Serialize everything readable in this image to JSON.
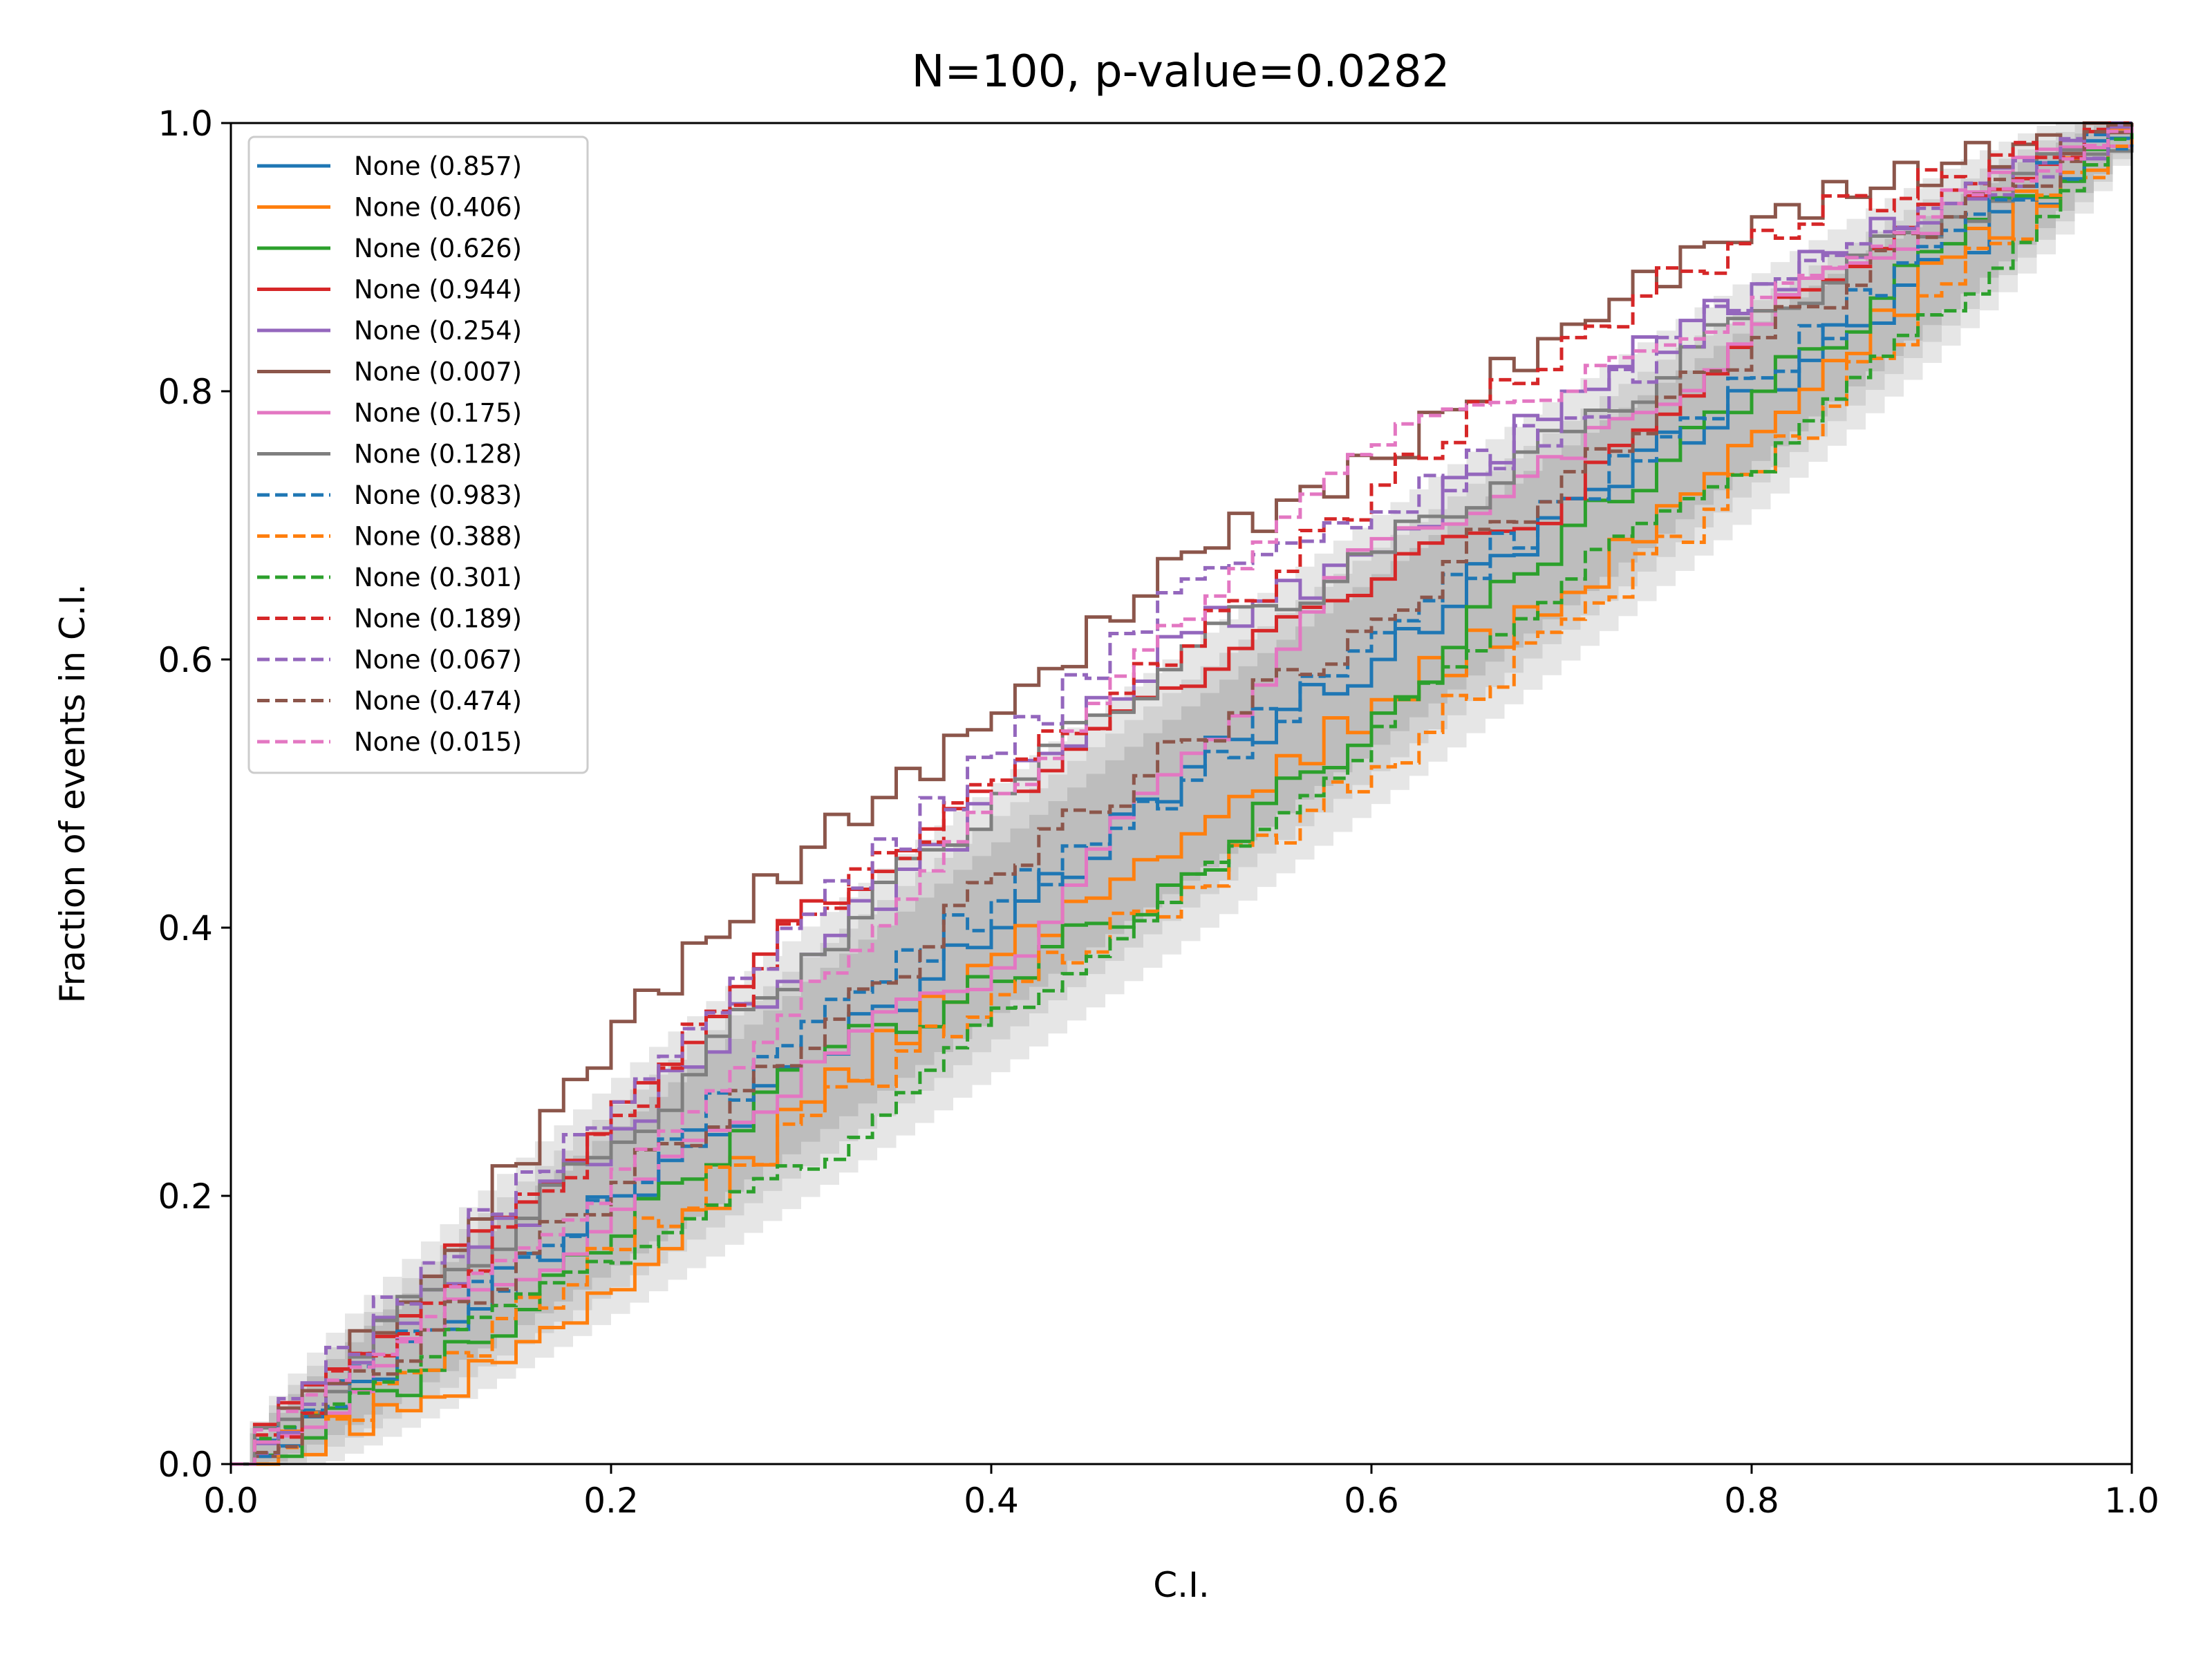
{
  "chart_data": {
    "type": "line",
    "title": "N=100, p-value=0.0282",
    "xlabel": "C.I.",
    "ylabel": "Fraction of events in C.I.",
    "xlim": [
      0.0,
      1.0
    ],
    "ylim": [
      0.0,
      1.0
    ],
    "xticks": [
      "0.0",
      "0.2",
      "0.4",
      "0.6",
      "0.8",
      "1.0"
    ],
    "yticks": [
      "0.0",
      "0.2",
      "0.4",
      "0.6",
      "0.8",
      "1.0"
    ],
    "grid": false,
    "legend_position": "top-left",
    "n_events": 100,
    "confidence_bands": [
      {
        "name": "inner",
        "color": "#bdbdbd",
        "half_width_at_center": 0.065
      },
      {
        "name": "middle",
        "color": "#d2d2d2",
        "half_width_at_center": 0.085
      },
      {
        "name": "outer",
        "color": "#e6e6e6",
        "half_width_at_center": 0.11
      }
    ],
    "series": [
      {
        "name": "None (0.857)",
        "color": "#1f77b4",
        "dash": "solid",
        "values": [
          [
            0,
            0
          ],
          [
            0.1,
            0.1
          ],
          [
            0.2,
            0.2
          ],
          [
            0.3,
            0.3
          ],
          [
            0.4,
            0.4
          ],
          [
            0.5,
            0.52
          ],
          [
            0.6,
            0.6
          ],
          [
            0.7,
            0.72
          ],
          [
            0.8,
            0.8
          ],
          [
            0.9,
            0.9
          ],
          [
            1,
            1
          ]
        ]
      },
      {
        "name": "None (0.406)",
        "color": "#ff7f0e",
        "dash": "solid",
        "values": [
          [
            0,
            0
          ],
          [
            0.1,
            0.05
          ],
          [
            0.2,
            0.13
          ],
          [
            0.3,
            0.27
          ],
          [
            0.4,
            0.38
          ],
          [
            0.5,
            0.47
          ],
          [
            0.6,
            0.57
          ],
          [
            0.7,
            0.65
          ],
          [
            0.8,
            0.77
          ],
          [
            0.9,
            0.9
          ],
          [
            1,
            1
          ]
        ]
      },
      {
        "name": "None (0.626)",
        "color": "#2ca02c",
        "dash": "solid",
        "values": [
          [
            0,
            0
          ],
          [
            0.1,
            0.07
          ],
          [
            0.2,
            0.17
          ],
          [
            0.3,
            0.3
          ],
          [
            0.4,
            0.36
          ],
          [
            0.5,
            0.44
          ],
          [
            0.6,
            0.56
          ],
          [
            0.7,
            0.7
          ],
          [
            0.8,
            0.8
          ],
          [
            0.9,
            0.91
          ],
          [
            1,
            1
          ]
        ]
      },
      {
        "name": "None (0.944)",
        "color": "#d62728",
        "dash": "solid",
        "values": [
          [
            0,
            0
          ],
          [
            0.1,
            0.14
          ],
          [
            0.2,
            0.27
          ],
          [
            0.3,
            0.42
          ],
          [
            0.4,
            0.5
          ],
          [
            0.5,
            0.58
          ],
          [
            0.6,
            0.66
          ],
          [
            0.7,
            0.72
          ],
          [
            0.8,
            0.86
          ],
          [
            0.9,
            0.95
          ],
          [
            1,
            1
          ]
        ]
      },
      {
        "name": "None (0.254)",
        "color": "#9467bd",
        "dash": "solid",
        "values": [
          [
            0,
            0
          ],
          [
            0.1,
            0.13
          ],
          [
            0.2,
            0.25
          ],
          [
            0.3,
            0.38
          ],
          [
            0.4,
            0.5
          ],
          [
            0.5,
            0.62
          ],
          [
            0.6,
            0.68
          ],
          [
            0.7,
            0.8
          ],
          [
            0.8,
            0.88
          ],
          [
            0.9,
            0.94
          ],
          [
            1,
            1
          ]
        ]
      },
      {
        "name": "None (0.007)",
        "color": "#8c564b",
        "dash": "solid",
        "values": [
          [
            0,
            0
          ],
          [
            0.1,
            0.14
          ],
          [
            0.2,
            0.33
          ],
          [
            0.3,
            0.46
          ],
          [
            0.4,
            0.56
          ],
          [
            0.5,
            0.68
          ],
          [
            0.6,
            0.75
          ],
          [
            0.7,
            0.85
          ],
          [
            0.8,
            0.93
          ],
          [
            0.9,
            0.97
          ],
          [
            1,
            1
          ]
        ]
      },
      {
        "name": "None (0.175)",
        "color": "#e377c2",
        "dash": "solid",
        "values": [
          [
            0,
            0
          ],
          [
            0.1,
            0.1
          ],
          [
            0.2,
            0.19
          ],
          [
            0.3,
            0.3
          ],
          [
            0.4,
            0.37
          ],
          [
            0.5,
            0.53
          ],
          [
            0.6,
            0.69
          ],
          [
            0.7,
            0.75
          ],
          [
            0.8,
            0.85
          ],
          [
            0.9,
            0.94
          ],
          [
            1,
            1
          ]
        ]
      },
      {
        "name": "None (0.128)",
        "color": "#7f7f7f",
        "dash": "solid",
        "values": [
          [
            0,
            0
          ],
          [
            0.1,
            0.13
          ],
          [
            0.2,
            0.24
          ],
          [
            0.3,
            0.38
          ],
          [
            0.4,
            0.5
          ],
          [
            0.5,
            0.61
          ],
          [
            0.6,
            0.68
          ],
          [
            0.7,
            0.77
          ],
          [
            0.8,
            0.86
          ],
          [
            0.9,
            0.93
          ],
          [
            1,
            1
          ]
        ]
      },
      {
        "name": "None (0.983)",
        "color": "#1f77b4",
        "dash": "dashed",
        "values": [
          [
            0,
            0
          ],
          [
            0.1,
            0.1
          ],
          [
            0.2,
            0.2
          ],
          [
            0.3,
            0.33
          ],
          [
            0.4,
            0.42
          ],
          [
            0.5,
            0.51
          ],
          [
            0.6,
            0.62
          ],
          [
            0.7,
            0.72
          ],
          [
            0.8,
            0.81
          ],
          [
            0.9,
            0.92
          ],
          [
            1,
            1
          ]
        ]
      },
      {
        "name": "None (0.388)",
        "color": "#ff7f0e",
        "dash": "dashed",
        "values": [
          [
            0,
            0
          ],
          [
            0.1,
            0.07
          ],
          [
            0.2,
            0.16
          ],
          [
            0.3,
            0.26
          ],
          [
            0.4,
            0.35
          ],
          [
            0.5,
            0.43
          ],
          [
            0.6,
            0.52
          ],
          [
            0.7,
            0.63
          ],
          [
            0.8,
            0.74
          ],
          [
            0.9,
            0.88
          ],
          [
            1,
            1
          ]
        ]
      },
      {
        "name": "None (0.301)",
        "color": "#2ca02c",
        "dash": "dashed",
        "values": [
          [
            0,
            0
          ],
          [
            0.1,
            0.08
          ],
          [
            0.2,
            0.15
          ],
          [
            0.3,
            0.22
          ],
          [
            0.4,
            0.34
          ],
          [
            0.5,
            0.44
          ],
          [
            0.6,
            0.55
          ],
          [
            0.7,
            0.66
          ],
          [
            0.8,
            0.74
          ],
          [
            0.9,
            0.86
          ],
          [
            1,
            1
          ]
        ]
      },
      {
        "name": "None (0.189)",
        "color": "#d62728",
        "dash": "dashed",
        "values": [
          [
            0,
            0
          ],
          [
            0.1,
            0.12
          ],
          [
            0.2,
            0.26
          ],
          [
            0.3,
            0.41
          ],
          [
            0.4,
            0.51
          ],
          [
            0.5,
            0.61
          ],
          [
            0.6,
            0.73
          ],
          [
            0.7,
            0.84
          ],
          [
            0.8,
            0.92
          ],
          [
            0.9,
            0.96
          ],
          [
            1,
            1
          ]
        ]
      },
      {
        "name": "None (0.067)",
        "color": "#9467bd",
        "dash": "dashed",
        "values": [
          [
            0,
            0
          ],
          [
            0.1,
            0.15
          ],
          [
            0.2,
            0.27
          ],
          [
            0.3,
            0.41
          ],
          [
            0.4,
            0.53
          ],
          [
            0.5,
            0.66
          ],
          [
            0.6,
            0.71
          ],
          [
            0.7,
            0.78
          ],
          [
            0.8,
            0.88
          ],
          [
            0.9,
            0.94
          ],
          [
            1,
            1
          ]
        ]
      },
      {
        "name": "None (0.474)",
        "color": "#8c564b",
        "dash": "dashed",
        "values": [
          [
            0,
            0
          ],
          [
            0.1,
            0.1
          ],
          [
            0.2,
            0.21
          ],
          [
            0.3,
            0.31
          ],
          [
            0.4,
            0.44
          ],
          [
            0.5,
            0.54
          ],
          [
            0.6,
            0.63
          ],
          [
            0.7,
            0.74
          ],
          [
            0.8,
            0.84
          ],
          [
            0.9,
            0.93
          ],
          [
            1,
            1
          ]
        ]
      },
      {
        "name": "None (0.015)",
        "color": "#e377c2",
        "dash": "dashed",
        "values": [
          [
            0,
            0
          ],
          [
            0.1,
            0.11
          ],
          [
            0.2,
            0.22
          ],
          [
            0.3,
            0.36
          ],
          [
            0.4,
            0.5
          ],
          [
            0.5,
            0.63
          ],
          [
            0.6,
            0.76
          ],
          [
            0.7,
            0.8
          ],
          [
            0.8,
            0.87
          ],
          [
            0.9,
            0.95
          ],
          [
            1,
            1
          ]
        ]
      }
    ]
  }
}
